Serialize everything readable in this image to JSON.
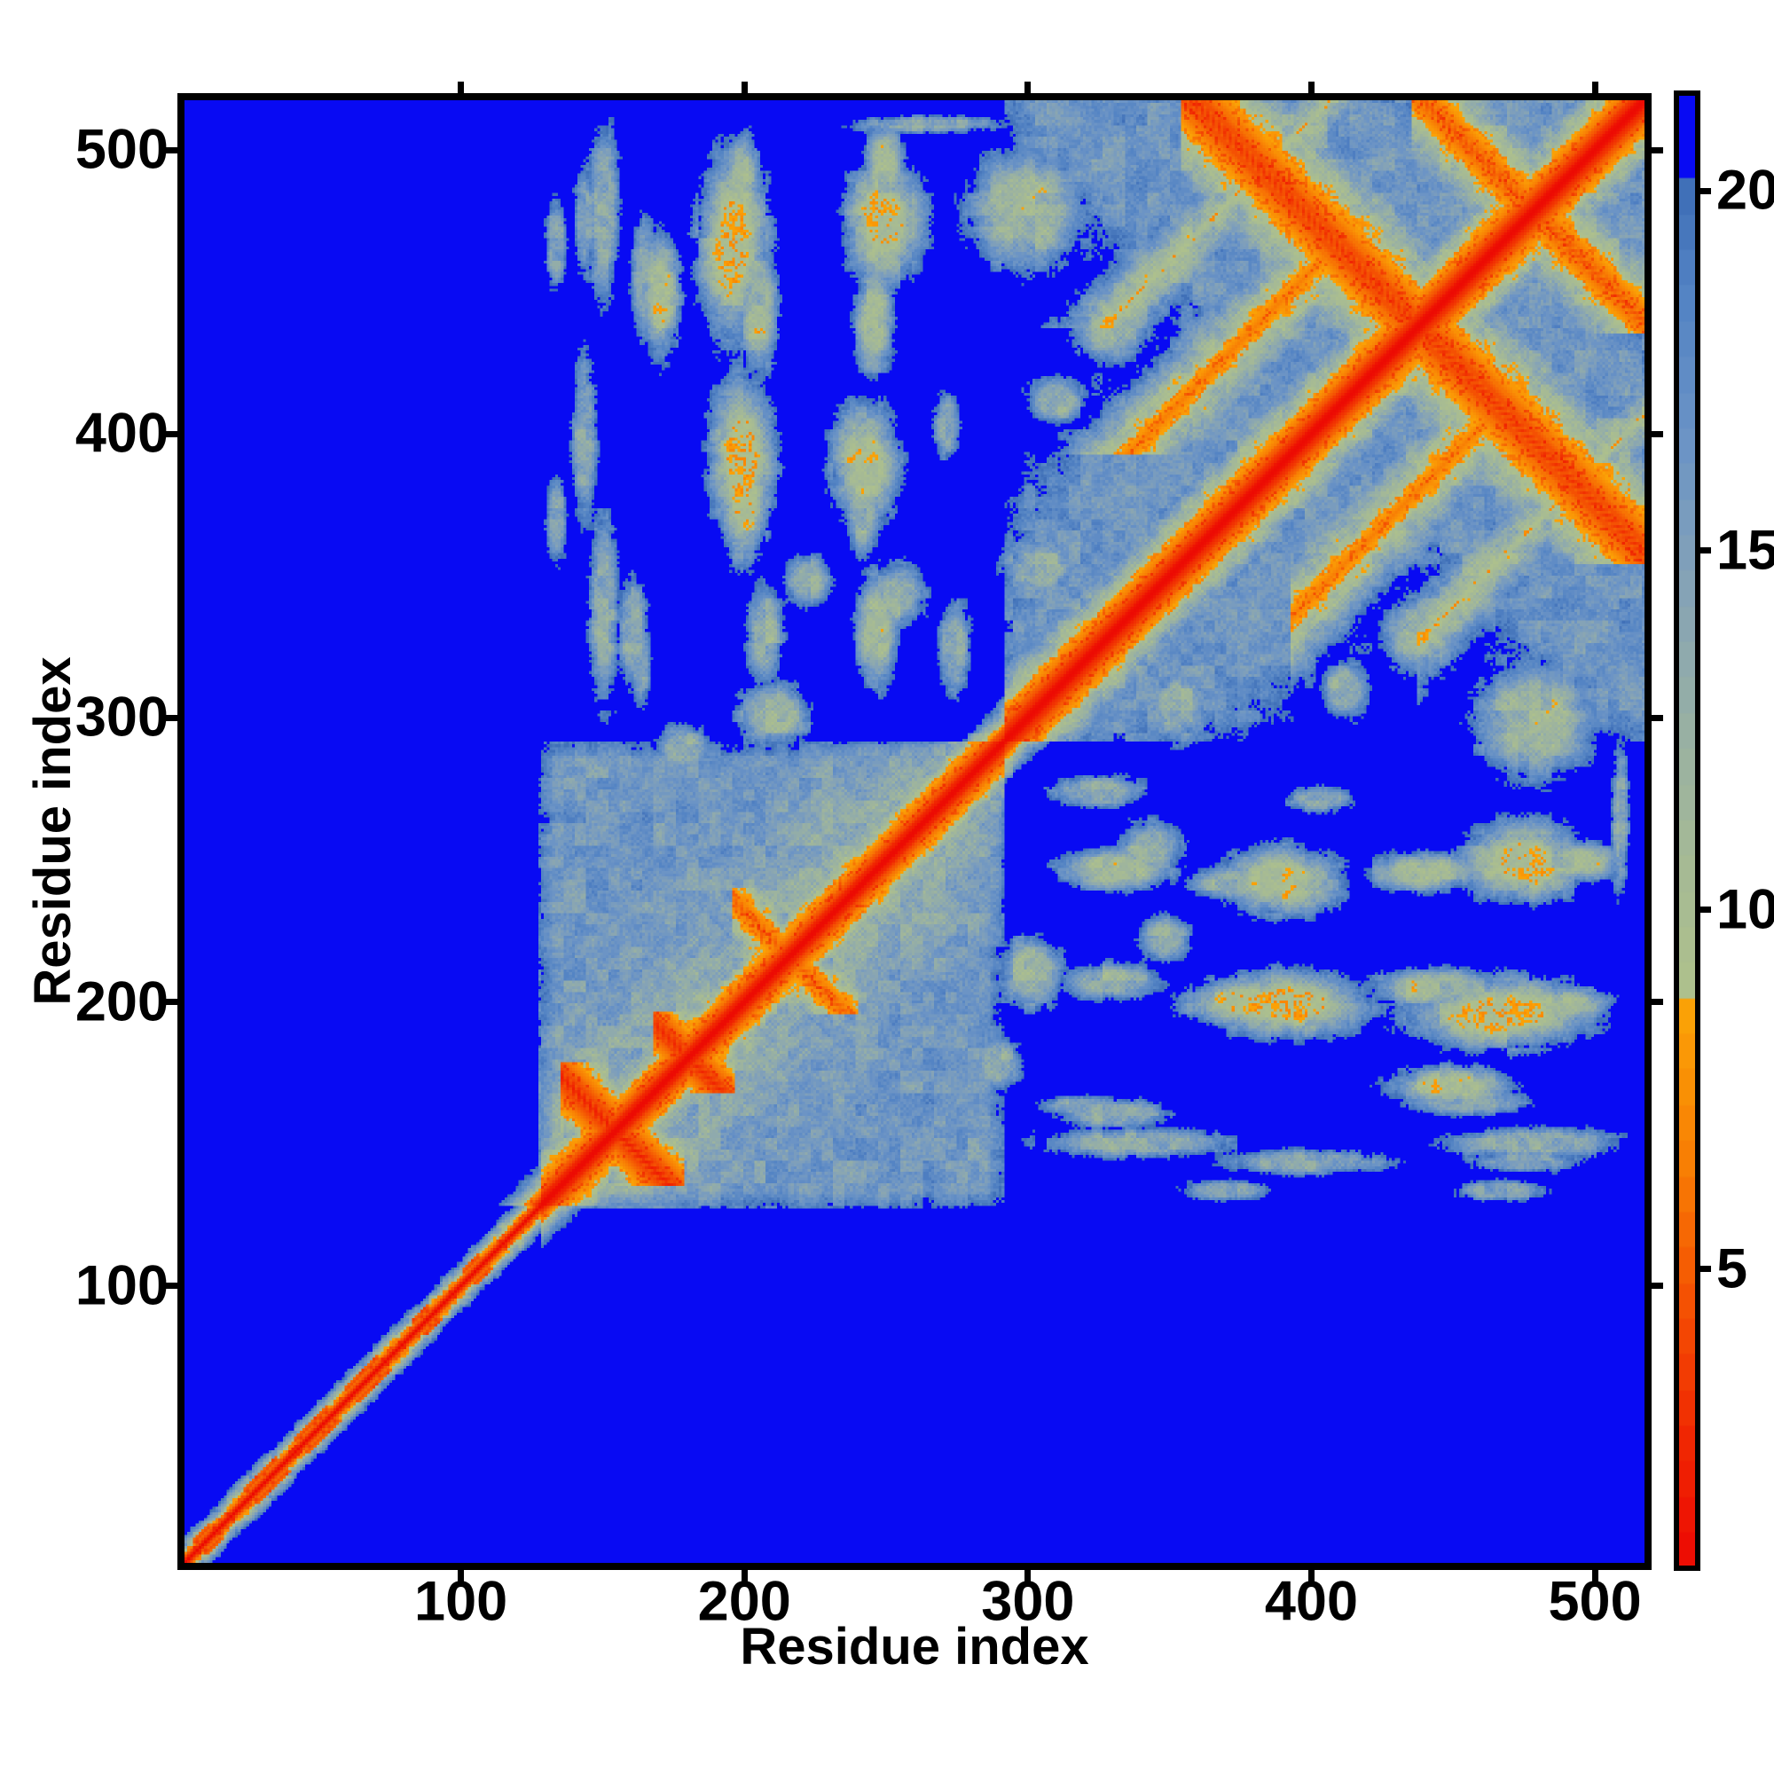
{
  "figure": {
    "background": "#ffffff",
    "frame_color": "#000000"
  },
  "axes": {
    "x_label": "Residue index",
    "y_label": "Residue index",
    "x_ticks": [
      100,
      200,
      300,
      400,
      500
    ],
    "y_ticks": [
      100,
      200,
      300,
      400,
      500
    ],
    "range": [
      1,
      520
    ]
  },
  "chart_data": {
    "type": "heatmap",
    "title": "",
    "xlabel": "Residue index",
    "ylabel": "Residue index",
    "x_range": [
      1,
      520
    ],
    "y_range": [
      1,
      520
    ],
    "grid": false,
    "legend_position": "right-colorbar",
    "description": "Symmetric residue-residue distance matrix of a ~520 residue protein. Red diagonal = near-zero self distance; orange/sage sheath along diagonal; steel-blue patches = inter-residue contacts (~14-19); deep blue background = distances above 20. N-terminal region ~1-125 is an extended tail with no off-diagonal contacts; a dense contact domain spans ~127-292 containing two short anti-diagonal hairpins crossing the diagonal near residues 154 and 180; a second domain ~293-520 shows a long anti-diagonal hairpin crossing the diagonal near residue 440 (X pattern) plus parallel repeat bands; cross-domain contact stripes link rows ~130-280 with columns ~300-520.",
    "colorbar": {
      "ticks": [
        5,
        10,
        15,
        20
      ],
      "vmin": 0.8,
      "vmax": 21.4,
      "band_step": 0.5,
      "over_color": "#080af3",
      "colormap": [
        [
          0.8,
          [
            236,
            10,
            3
          ]
        ],
        [
          2.4,
          [
            240,
            36,
            2
          ]
        ],
        [
          4.4,
          [
            244,
            79,
            3
          ]
        ],
        [
          6.4,
          [
            248,
            125,
            4
          ]
        ],
        [
          8.5,
          [
            250,
            161,
            6
          ]
        ],
        [
          8.6,
          [
            175,
            193,
            139
          ]
        ],
        [
          10.5,
          [
            166,
            186,
            148
          ]
        ],
        [
          12.5,
          [
            152,
            176,
            163
          ]
        ],
        [
          14.5,
          [
            133,
            163,
            182
          ]
        ],
        [
          16.5,
          [
            108,
            148,
            197
          ]
        ],
        [
          18.6,
          [
            83,
            131,
            196
          ]
        ],
        [
          20.0,
          [
            64,
            112,
            184
          ]
        ],
        [
          20.01,
          [
            8,
            10,
            243
          ]
        ],
        [
          21.4,
          [
            18,
            18,
            240
          ]
        ]
      ]
    },
    "matrix_model": {
      "n": 520,
      "diagonal": {
        "base": 0.35,
        "tail_end": 128,
        "b_end": 293,
        "scale_tail": 2.1,
        "scale_b": 0.78,
        "scale_c": 0.66,
        "scale_cross": 1.25,
        "bump_prob": 0.5,
        "bump_level": 4.5,
        "bump_period": 12
      },
      "hairpins": [
        {
          "c": 308,
          "lo": 135,
          "hi": 178,
          "k": 0.55,
          "d0": 2.1
        },
        {
          "c": 360,
          "lo": 168,
          "hi": 196,
          "k": 0.6,
          "d0": 2.4
        },
        {
          "c": 432,
          "lo": 196,
          "hi": 240,
          "k": 0.65,
          "d0": 4.8
        },
        {
          "c": 790,
          "lo": 266,
          "hi": 335,
          "k": 0.5,
          "d0": 4.0
        },
        {
          "c": 880,
          "lo": 356,
          "hi": 521,
          "k": 0.38,
          "d0": 3.2
        },
        {
          "c": 962,
          "lo": 438,
          "hi": 521,
          "k": 0.5,
          "d0": 4.4
        }
      ],
      "bands": [
        {
          "off": 58,
          "lo": 395,
          "hi": 472,
          "k": 0.5,
          "d0": 6.5
        },
        {
          "off": 112,
          "lo": 440,
          "hi": 521,
          "k": 0.55,
          "d0": 9.2
        }
      ],
      "blobs": [
        [
          143,
          400,
          6,
          40,
          14.2
        ],
        [
          143,
          478,
          5,
          26,
          14.6
        ],
        [
          160,
          332,
          7,
          26,
          14.0
        ],
        [
          164,
          456,
          6,
          30,
          14.6
        ],
        [
          196,
          470,
          13,
          34,
          9.2
        ],
        [
          199,
          394,
          12,
          30,
          9.0
        ],
        [
          250,
          477,
          15,
          22,
          9.4
        ],
        [
          243,
          391,
          13,
          22,
          9.8
        ],
        [
          210,
          302,
          16,
          14,
          12.6
        ],
        [
          255,
          344,
          11,
          13,
          12.2
        ],
        [
          300,
          481,
          24,
          24,
          11.6
        ],
        [
          331,
          441,
          17,
          17,
          12.6
        ],
        [
          311,
          414,
          13,
          11,
          13.4
        ],
        [
          222,
          350,
          10,
          12,
          13.2
        ],
        [
          178,
          290,
          12,
          10,
          13.0
        ],
        [
          150,
          340,
          7,
          44,
          13.6
        ],
        [
          150,
          480,
          7,
          38,
          13.2
        ],
        [
          133,
          372,
          5,
          20,
          14.4
        ],
        [
          133,
          470,
          5,
          22,
          14.6
        ],
        [
          163,
          320,
          5,
          20,
          14.8
        ],
        [
          170,
          452,
          8,
          26,
          11.2
        ],
        [
          200,
          378,
          9,
          22,
          9.4
        ],
        [
          207,
          330,
          8,
          22,
          12.8
        ],
        [
          205,
          445,
          8,
          26,
          11.8
        ],
        [
          199,
          492,
          7,
          18,
          10.2
        ],
        [
          247,
          332,
          9,
          24,
          11.8
        ],
        [
          242,
          375,
          8,
          20,
          12.8
        ],
        [
          246,
          442,
          8,
          22,
          10.8
        ],
        [
          250,
          495,
          8,
          20,
          11.2
        ],
        [
          275,
          325,
          7,
          22,
          13.8
        ],
        [
          272,
          405,
          6,
          16,
          14.2
        ],
        [
          265,
          512,
          35,
          4,
          14.2
        ],
        [
          408,
          514,
          20,
          4,
          14.6
        ],
        [
          305,
          355,
          16,
          14,
          13.5
        ]
      ],
      "block_b": {
        "lo": 127,
        "hi": 292,
        "near": 12.3,
        "slope": 0.055,
        "cap": 16.2,
        "fade_lo": 133,
        "fade_hi": 286,
        "fade_k": 0.55
      },
      "block_c": {
        "lo": 293,
        "anti_c": 880,
        "cap": 16.6,
        "radius": 62,
        "slope": 0.16,
        "fade_in": 300,
        "fade_k": 0.3
      },
      "checker": {
        "center": 12.4,
        "width": 3.8,
        "a_parity": 0.55,
        "a_grid": 0.9,
        "grid_freq": 0.8727
      },
      "sprinkle": {
        "min": 4.5,
        "max": 9.4,
        "prob": 0.22,
        "drop": 2.0
      },
      "noise": {
        "w_lo": 7.5,
        "w_range": 3.0,
        "a_fine": 2.2,
        "a_mid": 2.8,
        "a_coarse": 2.2
      }
    }
  }
}
